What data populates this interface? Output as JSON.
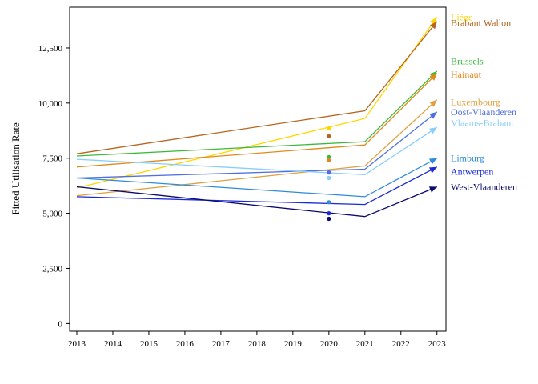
{
  "chart_data": {
    "type": "line",
    "title": "",
    "xlabel": "",
    "ylabel": "Fitted Utilisation Rate",
    "xlim": [
      2012.8,
      2023.25
    ],
    "ylim": [
      -350,
      14350
    ],
    "x_ticks": [
      "2013",
      "2014",
      "2015",
      "2016",
      "2017",
      "2018",
      "2019",
      "2020",
      "2021",
      "2022",
      "2023"
    ],
    "y_ticks": [
      {
        "value": 0,
        "label": "0"
      },
      {
        "value": 2500,
        "label": "2,500"
      },
      {
        "value": 5000,
        "label": "5,000"
      },
      {
        "value": 7500,
        "label": "7,500"
      },
      {
        "value": 10000,
        "label": "10,000"
      },
      {
        "value": 12500,
        "label": "12,500"
      }
    ],
    "x": [
      2013,
      2021,
      2023
    ],
    "series": [
      {
        "name": "Liège",
        "color": "#ffd700",
        "values": [
          6150,
          9300,
          13900
        ],
        "point_2020": 8850,
        "label_value": 13900
      },
      {
        "name": "Brabant Wallon",
        "color": "#b5651d",
        "values": [
          7700,
          9650,
          13700
        ],
        "point_2020": 8500,
        "label_value": 13650
      },
      {
        "name": "Brussels",
        "color": "#3cb93c",
        "values": [
          7600,
          8250,
          11450
        ],
        "point_2020": 7550,
        "label_value": 11900
      },
      {
        "name": "Hainaut",
        "color": "#e08a1e",
        "values": [
          7100,
          8100,
          11350
        ],
        "point_2020": 7400,
        "label_value": 11300
      },
      {
        "name": "Luxembourg",
        "color": "#e0a040",
        "values": [
          5800,
          7150,
          10150
        ],
        "point_2020": 6900,
        "label_value": 10050
      },
      {
        "name": "Oost-Vlaanderen",
        "color": "#4f6fe0",
        "values": [
          6600,
          7000,
          9600
        ],
        "point_2020": 6850,
        "label_value": 9600
      },
      {
        "name": "Vlaams-Brabant",
        "color": "#87cefa",
        "values": [
          7450,
          6750,
          8900
        ],
        "point_2020": 6600,
        "label_value": 9100
      },
      {
        "name": "Limburg",
        "color": "#2e8bdc",
        "values": [
          6600,
          5750,
          7500
        ],
        "point_2020": 5500,
        "label_value": 7500
      },
      {
        "name": "Antwerpen",
        "color": "#1c2bd6",
        "values": [
          5750,
          5400,
          7100
        ],
        "point_2020": 5000,
        "label_value": 6900
      },
      {
        "name": "West-Vlaanderen",
        "color": "#0a0a6e",
        "values": [
          6200,
          4850,
          6200
        ],
        "point_2020": 4750,
        "label_value": 6200
      }
    ],
    "grid": false,
    "legend": "direct labels on right"
  }
}
